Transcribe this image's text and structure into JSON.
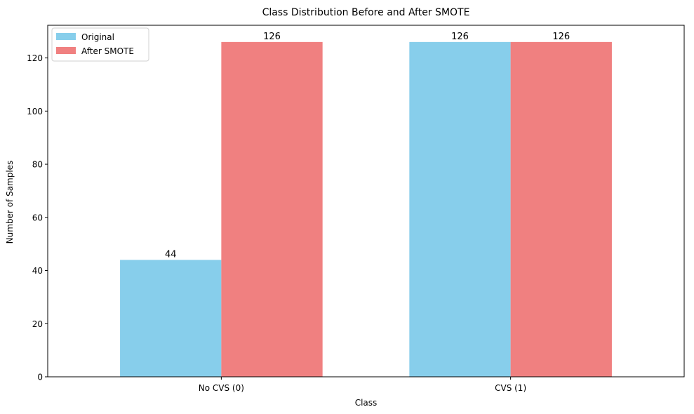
{
  "chart_data": {
    "type": "bar",
    "title": "Class Distribution Before and After SMOTE",
    "xlabel": "Class",
    "ylabel": "Number of Samples",
    "categories": [
      "No CVS (0)",
      "CVS (1)"
    ],
    "series": [
      {
        "name": "Original",
        "values": [
          44,
          126
        ],
        "color": "#87ceeb"
      },
      {
        "name": "After SMOTE",
        "values": [
          126,
          126
        ],
        "color": "#f08080"
      }
    ],
    "ylim": [
      0,
      132.3
    ],
    "yticks": [
      0,
      20,
      40,
      60,
      80,
      100,
      120
    ],
    "grid": false,
    "legend_position": "top-left",
    "data_labels": true
  }
}
